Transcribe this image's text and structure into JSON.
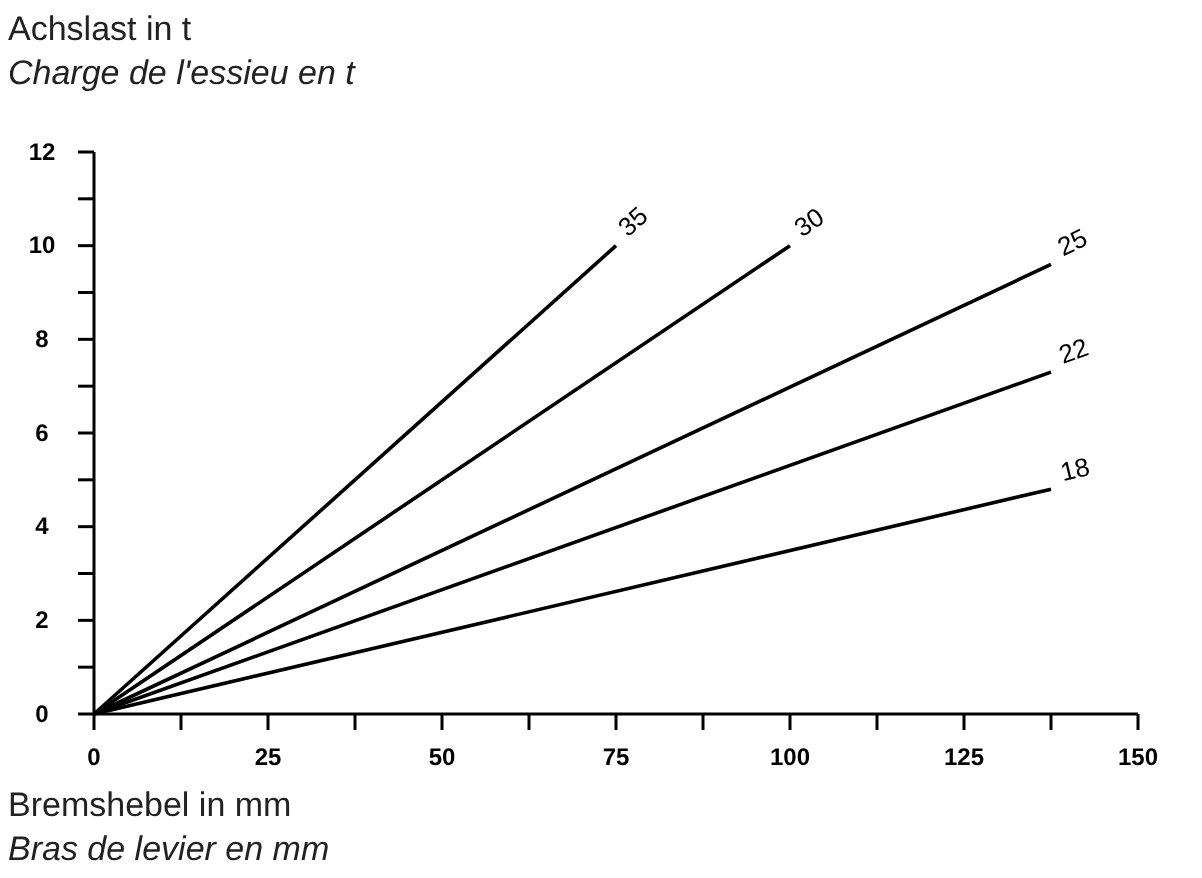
{
  "chart_data": {
    "type": "line",
    "xlabel": "Bremshebel in mm\nBras de levier en mm",
    "ylabel": "Achslast in t\nCharge de l'essieu en t",
    "xlim": [
      0,
      150
    ],
    "ylim": [
      0,
      12
    ],
    "xticks": [
      0,
      {
        "value": 12.5,
        "label": null
      },
      25,
      {
        "value": 37.5,
        "label": null
      },
      50,
      {
        "value": 62.5,
        "label": null
      },
      75,
      {
        "value": 87.5,
        "label": null
      },
      100,
      {
        "value": 112.5,
        "label": null
      },
      125,
      {
        "value": 137.5,
        "label": null
      },
      150
    ],
    "yticks": [
      0,
      {
        "value": 1,
        "label": null
      },
      2,
      {
        "value": 3,
        "label": null
      },
      4,
      {
        "value": 5,
        "label": null
      },
      6,
      {
        "value": 7,
        "label": null
      },
      8,
      {
        "value": 9,
        "label": null
      },
      10,
      {
        "value": 11,
        "label": null
      },
      12
    ],
    "grid": false,
    "legend": false,
    "line_style": "solid",
    "series": [
      {
        "name": "35",
        "color": "#000000",
        "x": [
          0,
          75
        ],
        "values": [
          0,
          10
        ]
      },
      {
        "name": "30",
        "color": "#000000",
        "x": [
          0,
          100
        ],
        "values": [
          0,
          10
        ]
      },
      {
        "name": "25",
        "color": "#000000",
        "x": [
          0,
          137.5
        ],
        "values": [
          0,
          9.6
        ]
      },
      {
        "name": "22",
        "color": "#000000",
        "x": [
          0,
          137.5
        ],
        "values": [
          0,
          7.3
        ]
      },
      {
        "name": "18",
        "color": "#000000",
        "x": [
          0,
          137.5
        ],
        "values": [
          0,
          4.8
        ]
      }
    ]
  }
}
